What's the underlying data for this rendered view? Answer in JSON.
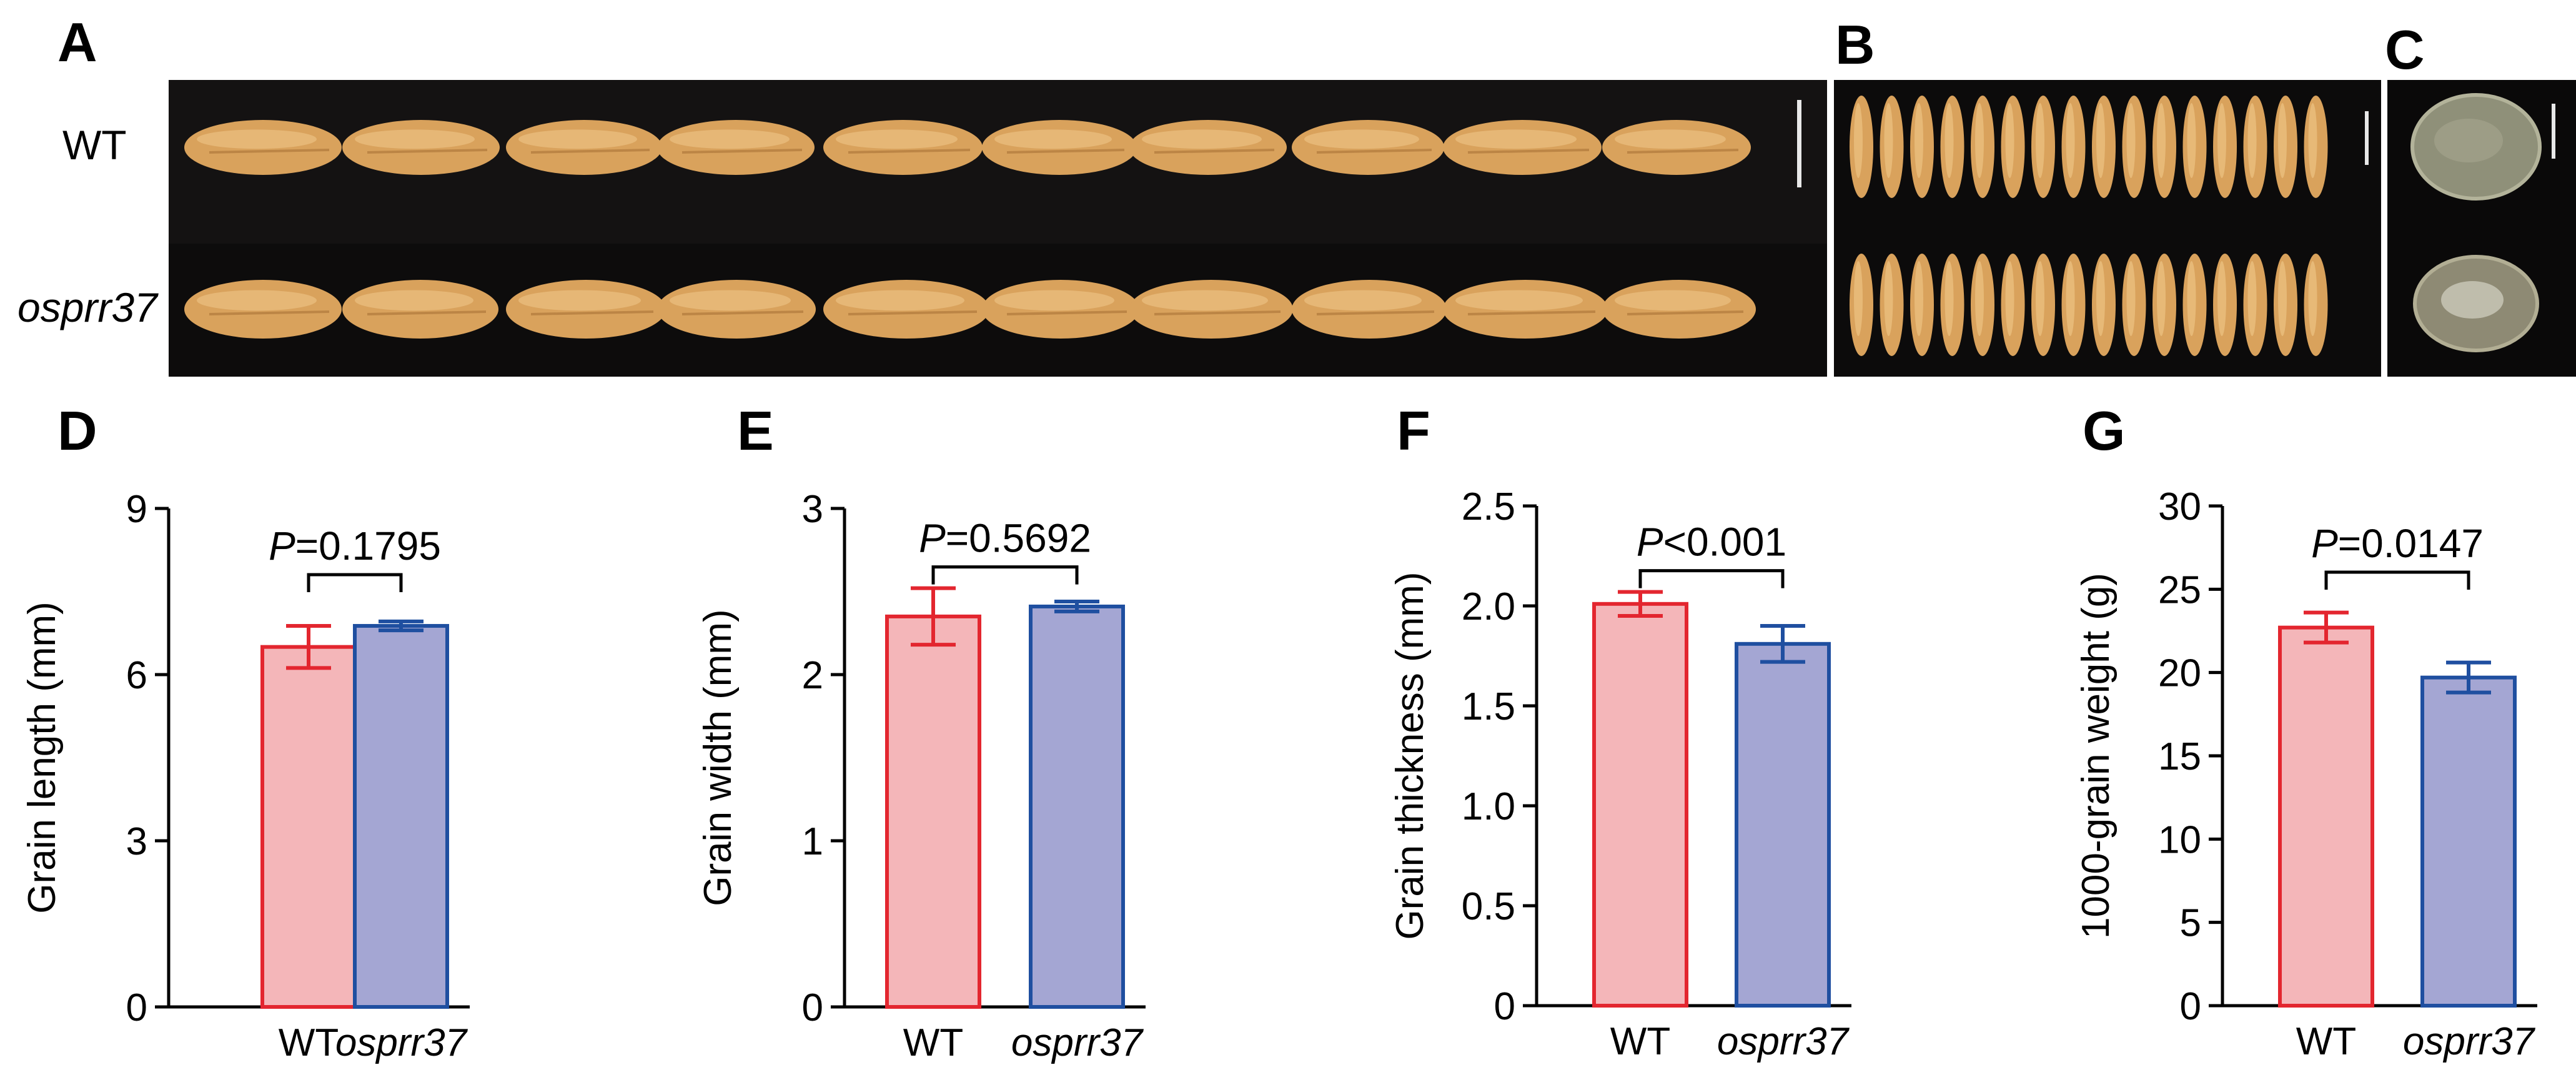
{
  "figure": {
    "panel_labels": [
      "A",
      "B",
      "C",
      "D",
      "E",
      "F",
      "G"
    ],
    "photo_row_labels": [
      "WT",
      "osprr37"
    ],
    "colors": {
      "wt_fill": "#f4b6b9",
      "wt_edge": "#e3262f",
      "mut_fill": "#a4a6d3",
      "mut_edge": "#1f4fa0",
      "photo_bg": "#0d0c0c",
      "grain": "#d9a25c"
    }
  },
  "chart_data": [
    {
      "panel": "D",
      "type": "bar",
      "categories": [
        "WT",
        "osprr37"
      ],
      "values": [
        6.5,
        6.88
      ],
      "errors": [
        0.38,
        0.08
      ],
      "ylabel": "Grain length (mm)",
      "ylim": [
        0,
        9
      ],
      "yticks": [
        "0",
        "3",
        "6",
        "9"
      ],
      "pvalue": {
        "prefix": "P",
        "text": "=0.1795"
      }
    },
    {
      "panel": "E",
      "type": "bar",
      "categories": [
        "WT",
        "osprr37"
      ],
      "values": [
        2.35,
        2.41
      ],
      "errors": [
        0.17,
        0.03
      ],
      "ylabel": "Grain width (mm)",
      "ylim": [
        0,
        3
      ],
      "yticks": [
        "0",
        "1",
        "2",
        "3"
      ],
      "pvalue": {
        "prefix": "P",
        "text": "=0.5692"
      }
    },
    {
      "panel": "F",
      "type": "bar",
      "categories": [
        "WT",
        "osprr37"
      ],
      "values": [
        2.01,
        1.81
      ],
      "errors": [
        0.06,
        0.09
      ],
      "ylabel": "Grain thickness (mm)",
      "ylim": [
        0,
        2.5
      ],
      "yticks": [
        "0",
        "0.5",
        "1.0",
        "1.5",
        "2.0",
        "2.5"
      ],
      "pvalue": {
        "prefix": "P",
        "text": "<0.001"
      }
    },
    {
      "panel": "G",
      "type": "bar",
      "categories": [
        "WT",
        "osprr37"
      ],
      "values": [
        22.7,
        19.7
      ],
      "errors": [
        0.9,
        0.9
      ],
      "ylabel": "1000-grain weight (g)",
      "ylim": [
        0,
        30
      ],
      "yticks": [
        "0",
        "5",
        "10",
        "15",
        "20",
        "25",
        "30"
      ],
      "pvalue": {
        "prefix": "P",
        "text": "=0.0147"
      }
    }
  ]
}
